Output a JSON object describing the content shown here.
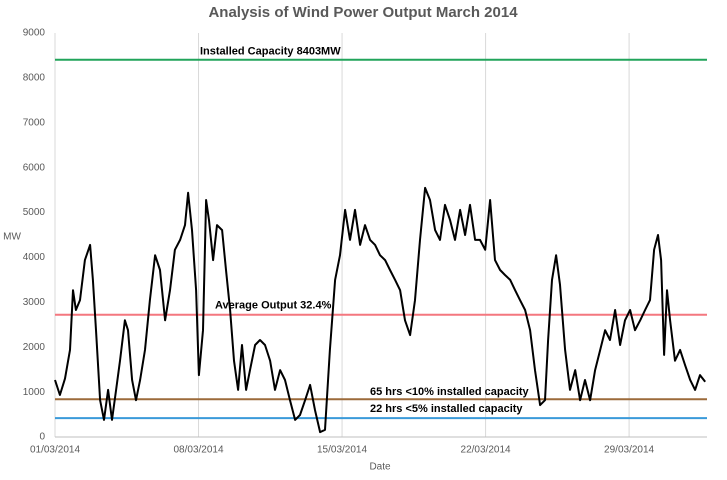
{
  "chart_data": {
    "type": "line",
    "title": "Analysis of Wind Power Output March 2014",
    "x_label": "Date",
    "y_label": "MW",
    "xlim": [
      0,
      31.8
    ],
    "ylim": [
      0,
      9000
    ],
    "xticks": [
      {
        "value": 0,
        "label": "01/03/2014"
      },
      {
        "value": 7,
        "label": "08/03/2014"
      },
      {
        "value": 14,
        "label": "15/03/2014"
      },
      {
        "value": 21,
        "label": "22/03/2014"
      },
      {
        "value": 28,
        "label": "29/03/2014"
      }
    ],
    "yticks": [
      0,
      1000,
      2000,
      3000,
      4000,
      5000,
      6000,
      7000,
      8000,
      9000
    ],
    "grid": "x",
    "series": [
      {
        "name": "Wind Power Output",
        "color": "#000000",
        "x": [
          0,
          0.24,
          0.49,
          0.73,
          0.88,
          1.02,
          1.22,
          1.46,
          1.71,
          1.85,
          2.0,
          2.2,
          2.39,
          2.59,
          2.78,
          2.98,
          3.17,
          3.41,
          3.56,
          3.76,
          3.95,
          4.15,
          4.39,
          4.63,
          4.88,
          5.12,
          5.37,
          5.61,
          5.85,
          6.1,
          6.34,
          6.49,
          6.68,
          6.88,
          7.02,
          7.22,
          7.37,
          7.51,
          7.71,
          7.9,
          8.15,
          8.34,
          8.54,
          8.73,
          8.93,
          9.12,
          9.32,
          9.51,
          9.76,
          10.0,
          10.24,
          10.49,
          10.73,
          10.98,
          11.22,
          11.46,
          11.71,
          11.95,
          12.2,
          12.44,
          12.68,
          12.93,
          13.17,
          13.41,
          13.66,
          13.9,
          14.15,
          14.39,
          14.63,
          14.88,
          15.12,
          15.37,
          15.61,
          15.85,
          16.1,
          16.34,
          16.59,
          16.83,
          17.07,
          17.32,
          17.56,
          17.8,
          18.05,
          18.29,
          18.54,
          18.78,
          19.02,
          19.27,
          19.51,
          19.76,
          20.0,
          20.24,
          20.49,
          20.73,
          20.98,
          21.22,
          21.46,
          21.71,
          21.95,
          22.2,
          22.44,
          22.68,
          22.93,
          23.17,
          23.41,
          23.66,
          23.9,
          24.05,
          24.24,
          24.44,
          24.63,
          24.88,
          25.12,
          25.37,
          25.61,
          25.85,
          26.1,
          26.34,
          26.59,
          26.83,
          27.07,
          27.32,
          27.56,
          27.8,
          28.05,
          28.29,
          28.54,
          28.78,
          29.02,
          29.22,
          29.41,
          29.56,
          29.71,
          29.85,
          30.0,
          30.24,
          30.49,
          30.73,
          30.98,
          31.22,
          31.46,
          31.71
        ],
        "values": [
          1270,
          935,
          1300,
          1940,
          3270,
          2830,
          3050,
          3940,
          4280,
          3500,
          2380,
          820,
          380,
          1050,
          380,
          1050,
          1700,
          2600,
          2380,
          1270,
          820,
          1270,
          1940,
          3050,
          4050,
          3720,
          2600,
          3270,
          4170,
          4390,
          4720,
          5440,
          4610,
          3270,
          1380,
          2380,
          5280,
          4830,
          3940,
          4720,
          4610,
          3720,
          2830,
          1700,
          1050,
          2050,
          1050,
          1490,
          2050,
          2160,
          2050,
          1700,
          1050,
          1490,
          1270,
          820,
          380,
          490,
          820,
          1160,
          600,
          110,
          160,
          1940,
          3500,
          4050,
          5060,
          4390,
          5060,
          4280,
          4720,
          4390,
          4280,
          4050,
          3940,
          3720,
          3500,
          3270,
          2600,
          2270,
          3050,
          4390,
          5550,
          5280,
          4610,
          4390,
          5170,
          4830,
          4390,
          5060,
          4500,
          5170,
          4390,
          4390,
          4170,
          5280,
          3940,
          3720,
          3610,
          3500,
          3270,
          3050,
          2830,
          2380,
          1490,
          710,
          820,
          2160,
          3500,
          4050,
          3390,
          1940,
          1050,
          1490,
          820,
          1270,
          820,
          1490,
          1940,
          2380,
          2160,
          2830,
          2050,
          2600,
          2830,
          2380,
          2600,
          2830,
          3050,
          4170,
          4500,
          3940,
          1830,
          3270,
          2600,
          1700,
          1940,
          1600,
          1270,
          1050,
          1380,
          1230
        ]
      }
    ],
    "reference_lines": [
      {
        "value": 8403,
        "label": "Installed Capacity 8403MW",
        "color": "#21a45a"
      },
      {
        "value": 2722,
        "label": "Average Output 32.4%",
        "color": "#f4777f"
      },
      {
        "value": 840,
        "label": "65 hrs <10% installed capacity",
        "color": "#9c6a3a"
      },
      {
        "value": 420,
        "label": "22 hrs <5% installed capacity",
        "color": "#3a9ad9"
      }
    ]
  }
}
